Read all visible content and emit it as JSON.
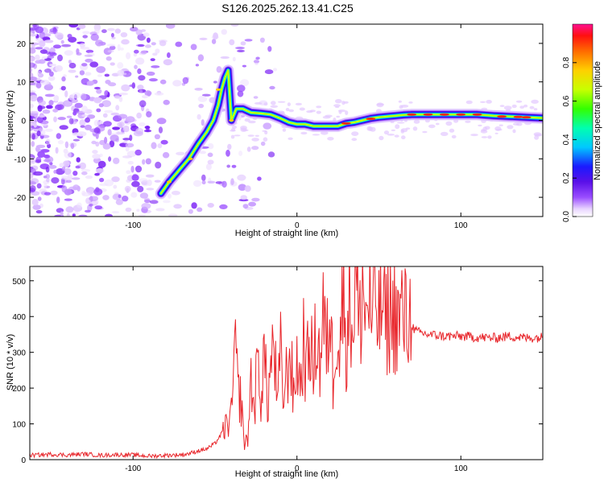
{
  "title": "S126.2025.262.13.41.C25",
  "colors": {
    "snr_line": "#e8262b",
    "axis": "#000000",
    "background": "#ffffff"
  },
  "chart_data": [
    {
      "type": "heatmap",
      "name": "spectrogram",
      "xlabel": "Height of straight line (km)",
      "ylabel": "Frequency (Hz)",
      "xlim": [
        -163,
        150
      ],
      "ylim": [
        -25,
        25
      ],
      "x_ticks": [
        -100,
        0,
        100
      ],
      "x_tick_labels": [
        "-100",
        "0",
        "100"
      ],
      "y_ticks": [
        -20,
        -10,
        0,
        10,
        20
      ],
      "y_tick_labels": [
        "-20",
        "-10",
        "0",
        "10",
        "20"
      ],
      "ridge": {
        "x": [
          -83,
          -78,
          -72,
          -66,
          -60,
          -55,
          -51,
          -48,
          -46,
          -44,
          -42,
          -40,
          -37,
          -33,
          -28,
          -22,
          -16,
          -10,
          -5,
          0,
          5,
          10,
          15,
          20,
          25,
          30,
          35,
          40,
          45,
          50,
          55,
          60,
          65,
          70,
          80,
          90,
          100,
          110,
          120,
          130,
          140,
          150
        ],
        "freq": [
          -19,
          -16,
          -13,
          -10,
          -6,
          -3,
          0,
          4,
          8,
          11,
          13,
          0,
          3,
          3,
          2,
          1.8,
          1.5,
          0.5,
          -0.5,
          -1,
          -1,
          -1.5,
          -1.5,
          -1.5,
          -1.5,
          -0.8,
          -0.5,
          0,
          0.5,
          0.8,
          1,
          1.2,
          1.4,
          1.5,
          1.5,
          1.5,
          1.5,
          1.5,
          1.2,
          1.0,
          0.8,
          0.6
        ]
      },
      "colorbar": {
        "label": "Normalized spectral amplitude",
        "range": [
          0,
          1
        ],
        "ticks": [
          0.0,
          0.2,
          0.4,
          0.6,
          0.8
        ],
        "tick_labels": [
          "0.0",
          "0.2",
          "0.4",
          "0.6",
          "0.8"
        ]
      }
    },
    {
      "type": "line",
      "name": "snr",
      "xlabel": "Height of straight line (km)",
      "ylabel": "SNR (10 * v/v)",
      "xlim": [
        -163,
        150
      ],
      "ylim": [
        0,
        540
      ],
      "x_ticks": [
        -100,
        0,
        100
      ],
      "x_tick_labels": [
        "-100",
        "0",
        "100"
      ],
      "y_ticks": [
        0,
        100,
        200,
        300,
        400,
        500
      ],
      "y_tick_labels": [
        "0",
        "100",
        "200",
        "300",
        "400",
        "500"
      ],
      "series": [
        {
          "name": "SNR",
          "x": [
            -163,
            -150,
            -140,
            -130,
            -120,
            -110,
            -100,
            -90,
            -80,
            -70,
            -65,
            -60,
            -55,
            -50,
            -45,
            -40,
            -38,
            -36,
            -34,
            -32,
            -30,
            -28,
            -26,
            -24,
            -22,
            -20,
            -18,
            -16,
            -14,
            -12,
            -10,
            -8,
            -6,
            -4,
            -2,
            0,
            2,
            4,
            6,
            8,
            10,
            12,
            14,
            16,
            18,
            20,
            22,
            24,
            26,
            28,
            30,
            32,
            34,
            36,
            38,
            40,
            42,
            44,
            46,
            48,
            50,
            52,
            54,
            56,
            58,
            60,
            62,
            64,
            66,
            68,
            70,
            72,
            75,
            80,
            90,
            100,
            110,
            120,
            130,
            140,
            150
          ],
          "values": [
            12,
            15,
            13,
            16,
            12,
            14,
            13,
            10,
            12,
            14,
            18,
            25,
            30,
            45,
            80,
            120,
            310,
            200,
            160,
            40,
            60,
            220,
            140,
            270,
            180,
            300,
            150,
            260,
            330,
            140,
            290,
            170,
            250,
            310,
            160,
            290,
            200,
            330,
            240,
            360,
            220,
            390,
            260,
            420,
            280,
            440,
            230,
            410,
            300,
            470,
            340,
            440,
            380,
            520,
            350,
            500,
            390,
            470,
            360,
            460,
            380,
            450,
            370,
            430,
            390,
            420,
            380,
            410,
            380,
            400,
            380,
            360,
            355,
            350,
            345,
            345,
            342,
            340,
            345,
            340,
            342
          ]
        }
      ]
    }
  ]
}
